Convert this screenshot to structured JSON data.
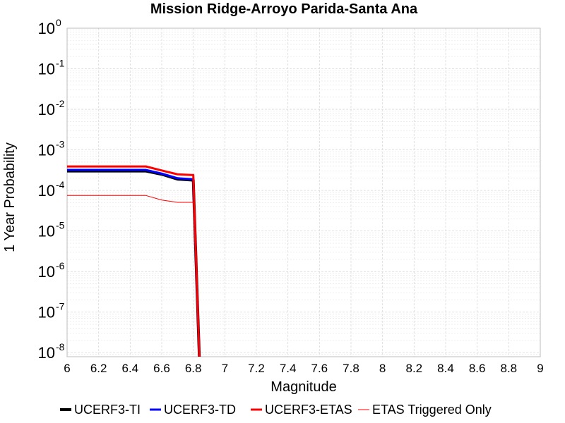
{
  "chart_data": {
    "type": "line",
    "title": "Mission Ridge-Arroyo Parida-Santa Ana",
    "xlabel": "Magnitude",
    "ylabel": "1 Year Probability",
    "xlim": [
      6,
      9
    ],
    "ylim_exponents": [
      -8.1,
      0
    ],
    "y_scale": "log",
    "grid": true,
    "legend_position": "bottom",
    "x_ticks": [
      "6",
      "6.2",
      "6.4",
      "6.6",
      "6.8",
      "7",
      "7.2",
      "7.4",
      "7.6",
      "7.8",
      "8",
      "8.2",
      "8.4",
      "8.6",
      "8.8",
      "9"
    ],
    "y_ticks": [
      {
        "base": "10",
        "exp": "0",
        "value": 1
      },
      {
        "base": "10",
        "exp": "-1",
        "value": 0.1
      },
      {
        "base": "10",
        "exp": "-2",
        "value": 0.01
      },
      {
        "base": "10",
        "exp": "-3",
        "value": 0.001
      },
      {
        "base": "10",
        "exp": "-4",
        "value": 0.0001
      },
      {
        "base": "10",
        "exp": "-5",
        "value": 1e-05
      },
      {
        "base": "10",
        "exp": "-6",
        "value": 1e-06
      },
      {
        "base": "10",
        "exp": "-7",
        "value": 1e-07
      },
      {
        "base": "10",
        "exp": "-8",
        "value": 1e-08
      }
    ],
    "series": [
      {
        "name": "UCERF3-TI",
        "color": "#000000",
        "width": 4,
        "x": [
          6.0,
          6.5,
          6.6,
          6.7,
          6.79,
          6.8,
          6.84
        ],
        "y": [
          0.0003,
          0.0003,
          0.00025,
          0.00019,
          0.00018,
          0.00018,
          5e-09
        ]
      },
      {
        "name": "UCERF3-TD",
        "color": "#0000ff",
        "width": 3,
        "x": [
          6.0,
          6.5,
          6.6,
          6.7,
          6.79,
          6.8,
          6.84
        ],
        "y": [
          0.00032,
          0.00032,
          0.00026,
          0.0002,
          0.00019,
          0.00019,
          5e-09
        ]
      },
      {
        "name": "UCERF3-ETAS",
        "color": "#ff0000",
        "width": 3,
        "x": [
          6.0,
          6.5,
          6.6,
          6.7,
          6.79,
          6.8,
          6.84
        ],
        "y": [
          0.00039,
          0.00039,
          0.00031,
          0.00025,
          0.00024,
          0.00024,
          5e-09
        ]
      },
      {
        "name": "ETAS Triggered Only",
        "color": "#ff0000",
        "width": 1,
        "x": [
          6.0,
          6.5,
          6.6,
          6.7,
          6.79,
          6.8,
          6.84
        ],
        "y": [
          7.5e-05,
          7.5e-05,
          5.8e-05,
          5.1e-05,
          5.1e-05,
          5.1e-05,
          5e-09
        ]
      }
    ]
  }
}
